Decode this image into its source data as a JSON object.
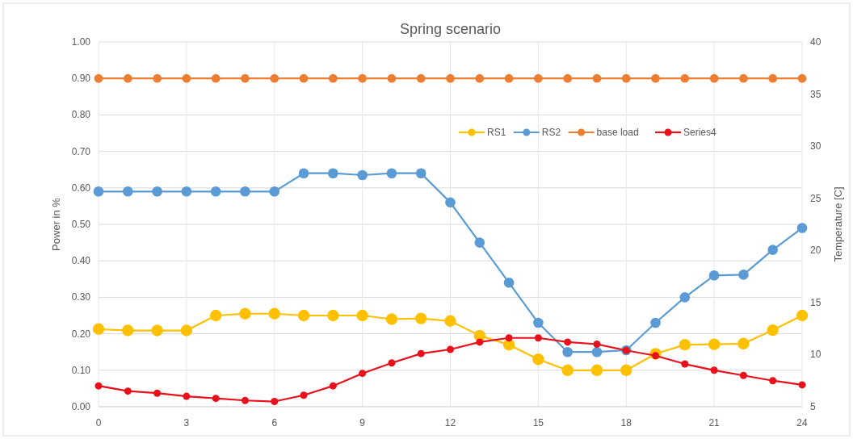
{
  "chart_data": {
    "type": "line",
    "title": "Spring scenario",
    "ylabel": "Power in %",
    "y2label": "Temperature [C]",
    "x": [
      0,
      1,
      2,
      3,
      4,
      5,
      6,
      7,
      8,
      9,
      10,
      11,
      12,
      13,
      14,
      15,
      16,
      17,
      18,
      19,
      20,
      21,
      22,
      23,
      24
    ],
    "xlim": [
      0,
      24
    ],
    "xticks": [
      0,
      3,
      6,
      9,
      12,
      15,
      18,
      21,
      24
    ],
    "ylim": [
      0,
      1
    ],
    "yticks": [
      {
        "value": 0,
        "label": "0.00"
      },
      {
        "value": 0.1,
        "label": "0.10"
      },
      {
        "value": 0.2,
        "label": "0.20"
      },
      {
        "value": 0.3,
        "label": "0.30"
      },
      {
        "value": 0.4,
        "label": "0.40"
      },
      {
        "value": 0.5,
        "label": "0.50"
      },
      {
        "value": 0.6,
        "label": "0.60"
      },
      {
        "value": 0.7,
        "label": "0.70"
      },
      {
        "value": 0.8,
        "label": "0.80"
      },
      {
        "value": 0.9,
        "label": "0.90"
      },
      {
        "value": 1,
        "label": "1.00"
      }
    ],
    "y2lim": [
      5,
      40
    ],
    "y2ticks": [
      5,
      10,
      15,
      20,
      25,
      30,
      35,
      40
    ],
    "grid": true,
    "legend": "top right",
    "marker": "circle",
    "line_style": "solid",
    "series": [
      {
        "name": "RS1",
        "color": "#ffc000",
        "values": [
          0.213,
          0.209,
          0.209,
          0.209,
          0.25,
          0.255,
          0.255,
          0.25,
          0.25,
          0.25,
          0.24,
          0.242,
          0.235,
          0.195,
          0.17,
          0.13,
          0.1,
          0.1,
          0.1,
          0.145,
          0.17,
          0.171,
          0.173,
          0.21,
          0.25
        ]
      },
      {
        "name": "RS2",
        "color": "#5b9bd5",
        "values": [
          0.59,
          0.59,
          0.59,
          0.59,
          0.59,
          0.59,
          0.59,
          0.64,
          0.64,
          0.635,
          0.64,
          0.64,
          0.56,
          0.45,
          0.34,
          0.23,
          0.15,
          0.15,
          0.155,
          0.23,
          0.3,
          0.36,
          0.362,
          0.43,
          0.49
        ]
      },
      {
        "name": "base load",
        "color": "#ed7d31",
        "values": [
          0.9,
          0.9,
          0.9,
          0.9,
          0.9,
          0.9,
          0.9,
          0.9,
          0.9,
          0.9,
          0.9,
          0.9,
          0.9,
          0.9,
          0.9,
          0.9,
          0.9,
          0.9,
          0.9,
          0.9,
          0.9,
          0.9,
          0.9,
          0.9,
          0.9
        ]
      },
      {
        "name": "Series4",
        "color": "#e8101a",
        "axis": "y2",
        "values": [
          7.0,
          6.5,
          6.3,
          6.0,
          5.8,
          5.6,
          5.5,
          6.1,
          7.0,
          8.2,
          9.2,
          10.1,
          10.5,
          11.2,
          11.6,
          11.6,
          11.2,
          11.0,
          10.4,
          9.9,
          9.1,
          8.5,
          8.0,
          7.5,
          7.1
        ]
      }
    ]
  }
}
